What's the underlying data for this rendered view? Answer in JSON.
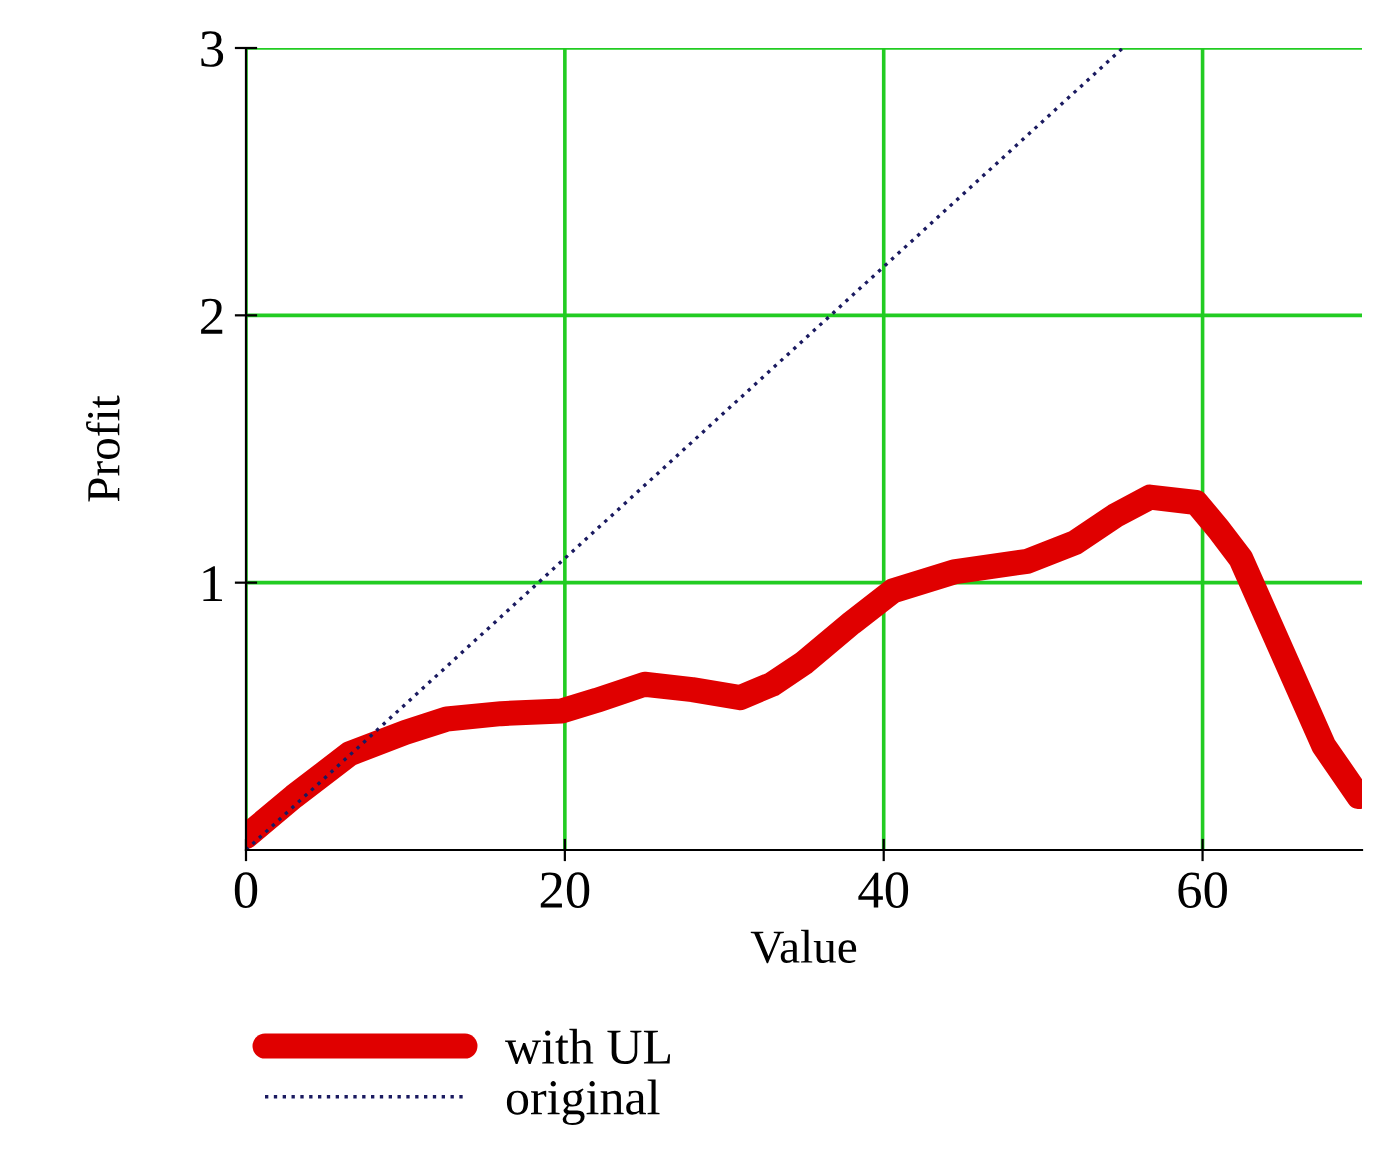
{
  "chart_data": {
    "type": "line",
    "xlabel": "Value",
    "ylabel": "Profit",
    "xlim": [
      0,
      70
    ],
    "ylim": [
      0,
      3
    ],
    "xticks": [
      0,
      20,
      40,
      60
    ],
    "yticks": [
      1,
      2,
      3
    ],
    "grid": true,
    "legend": "bottom left",
    "series": [
      {
        "name": "with UL",
        "color": "#e00000",
        "line_style": "solid",
        "x": [
          0,
          3,
          6.5,
          10,
          12.6,
          16,
          19.8,
          22,
          25,
          28,
          31,
          33,
          35,
          38,
          40.6,
          44.4,
          49,
          52,
          54.5,
          56.7,
          59.6,
          61,
          62.4,
          65.3,
          67.6,
          69.8
        ],
        "values": [
          0.05,
          0.2,
          0.36,
          0.44,
          0.49,
          0.51,
          0.52,
          0.56,
          0.62,
          0.6,
          0.57,
          0.62,
          0.7,
          0.85,
          0.97,
          1.04,
          1.08,
          1.15,
          1.25,
          1.32,
          1.3,
          1.2,
          1.09,
          0.7,
          0.39,
          0.2
        ]
      },
      {
        "name": "original",
        "color": "#1a1a60",
        "line_style": "dotted",
        "x": [
          0,
          55
        ],
        "values": [
          0,
          3
        ]
      }
    ]
  }
}
